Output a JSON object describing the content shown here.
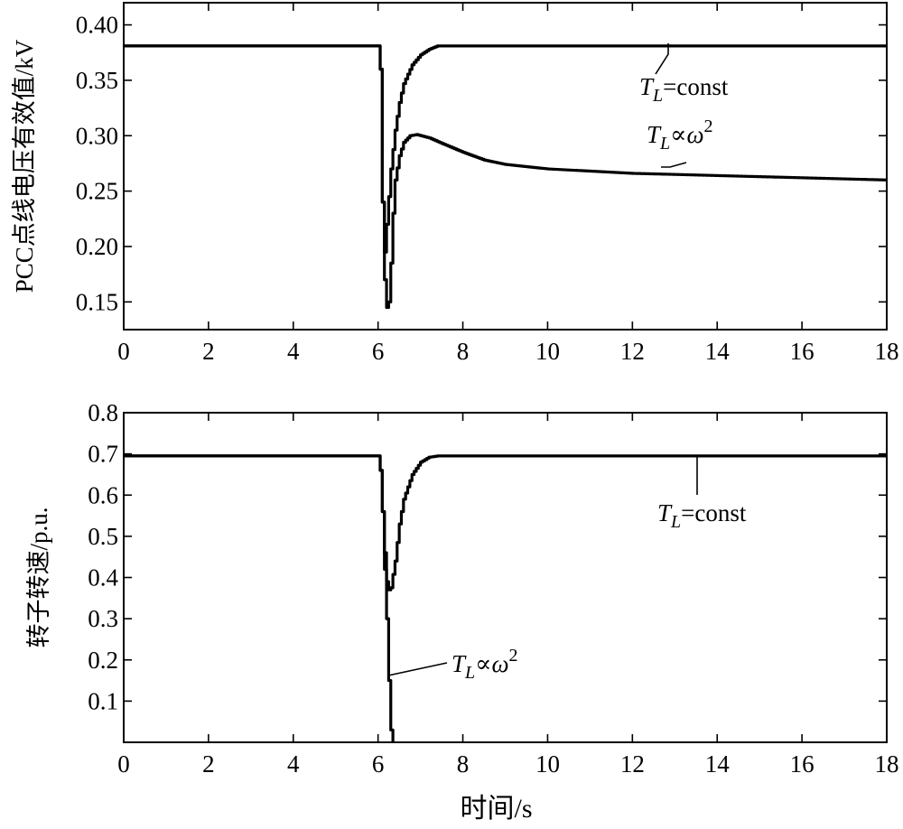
{
  "chart_data": [
    {
      "type": "line",
      "ylabel": "PCC点线电压有效值/kV",
      "xlabel": "",
      "xlim": [
        0,
        18
      ],
      "ylim": [
        0.125,
        0.42
      ],
      "xticks": [
        "0",
        "2",
        "4",
        "6",
        "8",
        "10",
        "12",
        "14",
        "16",
        "18"
      ],
      "yticks": [
        "0.15",
        "0.20",
        "0.25",
        "0.30",
        "0.35",
        "0.40"
      ],
      "grid": false,
      "series": [
        {
          "name": "TL=const",
          "label_parts": {
            "T": "T",
            "sub": "L",
            "rest": "=const"
          },
          "x": [
            0,
            6.0,
            6.05,
            6.1,
            6.15,
            6.2,
            6.3,
            6.4,
            6.5,
            6.6,
            6.8,
            7.0,
            7.2,
            7.4,
            8,
            10,
            12,
            14,
            16,
            18
          ],
          "y": [
            0.381,
            0.381,
            0.36,
            0.24,
            0.195,
            0.22,
            0.27,
            0.305,
            0.33,
            0.347,
            0.364,
            0.373,
            0.378,
            0.381,
            0.381,
            0.381,
            0.381,
            0.381,
            0.381,
            0.381
          ]
        },
        {
          "name": "TL∝ω2",
          "label_parts": {
            "T": "T",
            "sub": "L",
            "op": "∝",
            "w": "ω",
            "sup": "2"
          },
          "x": [
            0,
            6.0,
            6.05,
            6.1,
            6.15,
            6.2,
            6.25,
            6.3,
            6.35,
            6.4,
            6.5,
            6.6,
            6.75,
            6.9,
            7.2,
            7.5,
            8,
            8.5,
            9,
            10,
            11,
            12,
            13,
            14,
            15,
            16,
            17,
            18
          ],
          "y": [
            0.381,
            0.381,
            0.36,
            0.24,
            0.17,
            0.145,
            0.15,
            0.185,
            0.23,
            0.26,
            0.282,
            0.294,
            0.3,
            0.301,
            0.298,
            0.293,
            0.285,
            0.278,
            0.274,
            0.27,
            0.268,
            0.266,
            0.265,
            0.264,
            0.263,
            0.262,
            0.261,
            0.26
          ]
        }
      ]
    },
    {
      "type": "line",
      "ylabel": "转子转速/p.u.",
      "xlabel": "时间/s",
      "xlim": [
        0,
        18
      ],
      "ylim": [
        0,
        0.8
      ],
      "xticks": [
        "0",
        "2",
        "4",
        "6",
        "8",
        "10",
        "12",
        "14",
        "16",
        "18"
      ],
      "yticks": [
        "0.1",
        "0.2",
        "0.3",
        "0.4",
        "0.5",
        "0.6",
        "0.7",
        "0.8"
      ],
      "grid": false,
      "series": [
        {
          "name": "TL=const",
          "label_parts": {
            "T": "T",
            "sub": "L",
            "rest": "=const"
          },
          "x": [
            0,
            6.0,
            6.05,
            6.1,
            6.15,
            6.2,
            6.25,
            6.3,
            6.4,
            6.5,
            6.6,
            6.8,
            7.0,
            7.2,
            7.4,
            8,
            10,
            12,
            14,
            16,
            18
          ],
          "y": [
            0.695,
            0.695,
            0.66,
            0.56,
            0.46,
            0.39,
            0.37,
            0.375,
            0.44,
            0.53,
            0.59,
            0.65,
            0.68,
            0.692,
            0.695,
            0.695,
            0.695,
            0.695,
            0.695,
            0.695,
            0.695
          ]
        },
        {
          "name": "TL∝ω2",
          "label_parts": {
            "T": "T",
            "sub": "L",
            "op": "∝",
            "w": "ω",
            "sup": "2"
          },
          "x": [
            0,
            6.0,
            6.05,
            6.1,
            6.15,
            6.2,
            6.25,
            6.3,
            6.35
          ],
          "y": [
            0.695,
            0.695,
            0.66,
            0.56,
            0.42,
            0.3,
            0.15,
            0.03,
            0
          ]
        }
      ]
    }
  ]
}
